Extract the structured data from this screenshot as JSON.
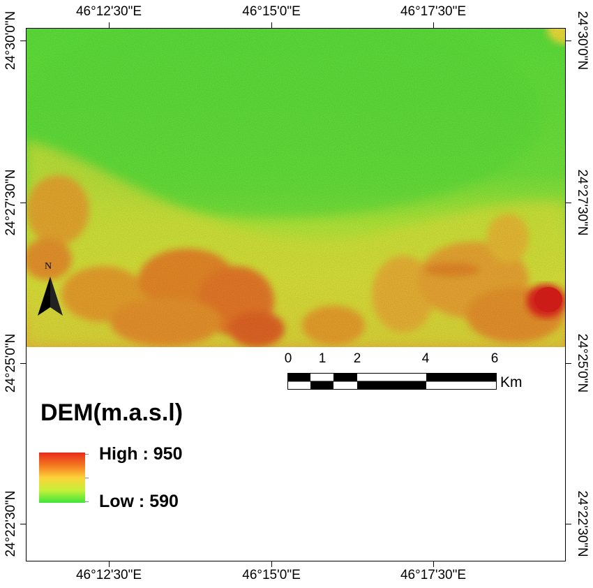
{
  "map": {
    "longitude_labels": [
      "46°12'30\"E",
      "46°15'0\"E",
      "46°17'30\"E"
    ],
    "latitude_labels": [
      "24°30'0\"N",
      "24°27'30\"N",
      "24°25'0\"N",
      "24°22'30\"N"
    ],
    "north_label": "N"
  },
  "scale_bar": {
    "labels": [
      "0",
      "1",
      "2",
      "4",
      "6"
    ],
    "unit": "Km"
  },
  "legend": {
    "title": "DEM(m.a.s.l)",
    "high_label": "High : 950",
    "low_label": "Low : 590",
    "colors": {
      "high": "#e82a1c",
      "mid": "#fdd23a",
      "low": "#3ee43a"
    }
  }
}
